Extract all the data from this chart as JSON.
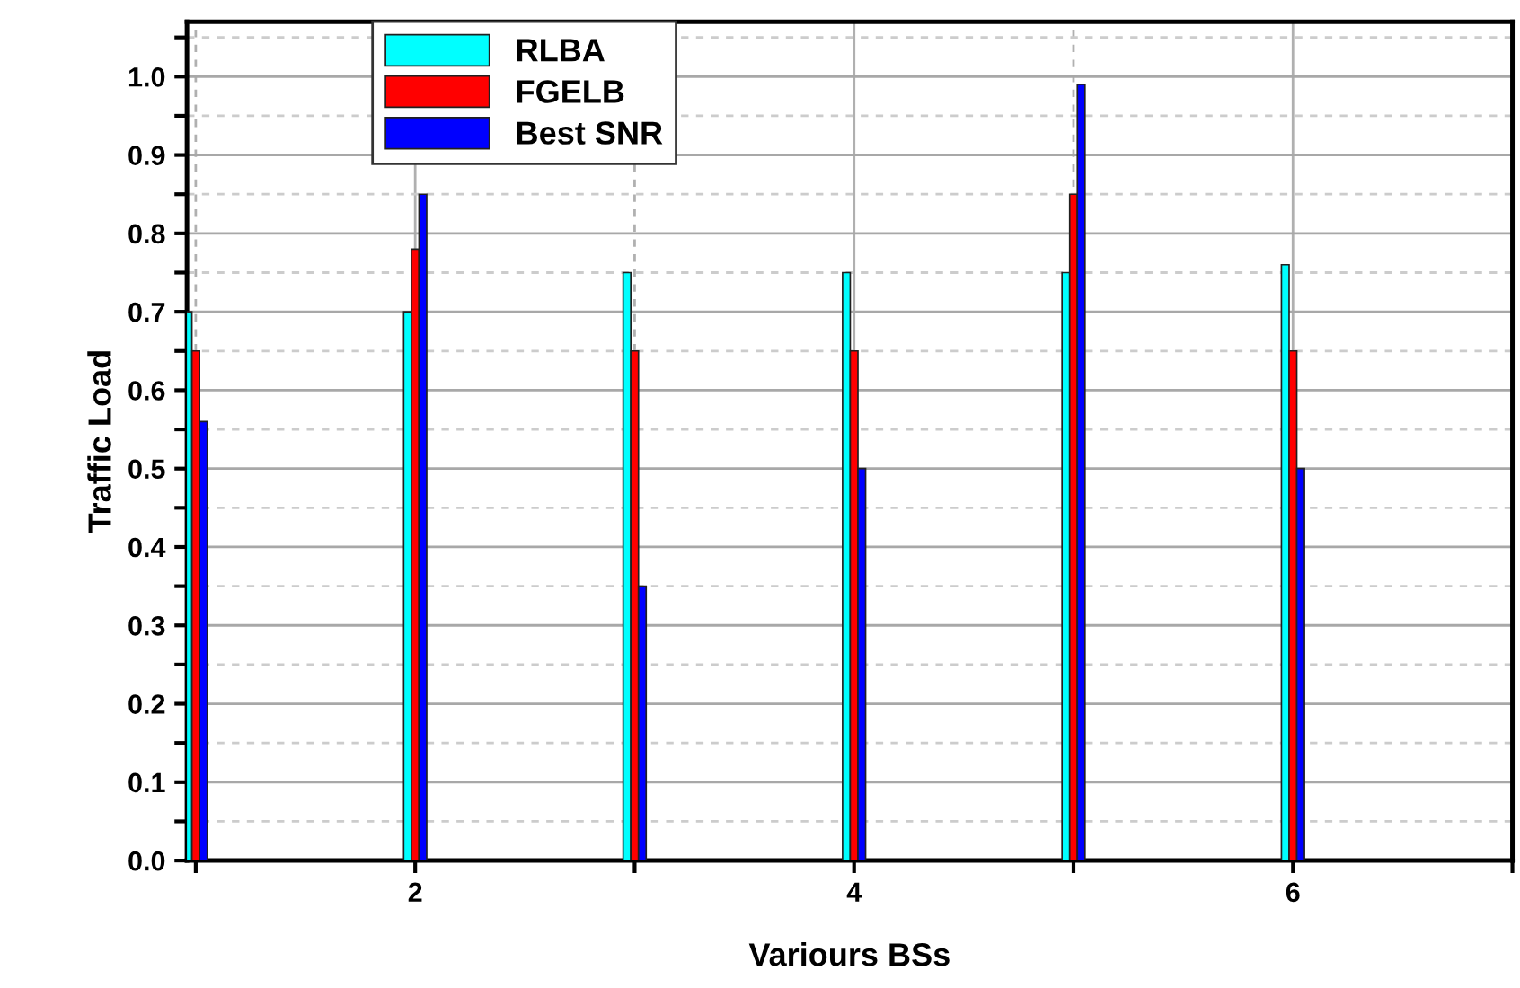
{
  "chart_data": {
    "type": "bar",
    "xlabel": "Variours BSs",
    "ylabel": "Traffic Load",
    "x": [
      1,
      2,
      3,
      4,
      5,
      6
    ],
    "series": [
      {
        "name": "RLBA",
        "color": "#00ffff",
        "values": [
          0.7,
          0.7,
          0.75,
          0.75,
          0.75,
          0.76
        ]
      },
      {
        "name": "FGELB",
        "color": "#ff0000",
        "values": [
          0.65,
          0.78,
          0.65,
          0.65,
          0.85,
          0.65
        ]
      },
      {
        "name": "Best SNR",
        "color": "#0000ff",
        "values": [
          0.56,
          0.85,
          0.35,
          0.5,
          0.99,
          0.5
        ]
      }
    ],
    "xlim": [
      0.96,
      7.0
    ],
    "xticks": [
      {
        "value": 1,
        "label": null
      },
      2,
      {
        "value": 3,
        "label": null
      },
      4,
      {
        "value": 5,
        "label": null
      },
      6,
      {
        "value": 7,
        "label": null
      }
    ],
    "ylim": [
      0,
      1.07
    ],
    "yticks": [
      {
        "value": 0,
        "label": "0.0"
      },
      {
        "value": 0.05,
        "label": null
      },
      0.1,
      {
        "value": 0.15,
        "label": null
      },
      0.2,
      {
        "value": 0.25,
        "label": null
      },
      0.3,
      {
        "value": 0.35,
        "label": null
      },
      0.4,
      {
        "value": 0.45,
        "label": null
      },
      0.5,
      {
        "value": 0.55,
        "label": null
      },
      0.6,
      {
        "value": 0.65,
        "label": null
      },
      0.7,
      {
        "value": 0.75,
        "label": null
      },
      0.8,
      {
        "value": 0.85,
        "label": null
      },
      0.9,
      {
        "value": 0.95,
        "label": null
      },
      {
        "value": 1.0,
        "label": "1.0"
      },
      {
        "value": 1.05,
        "label": null
      }
    ],
    "grid": true,
    "legend": "top"
  }
}
